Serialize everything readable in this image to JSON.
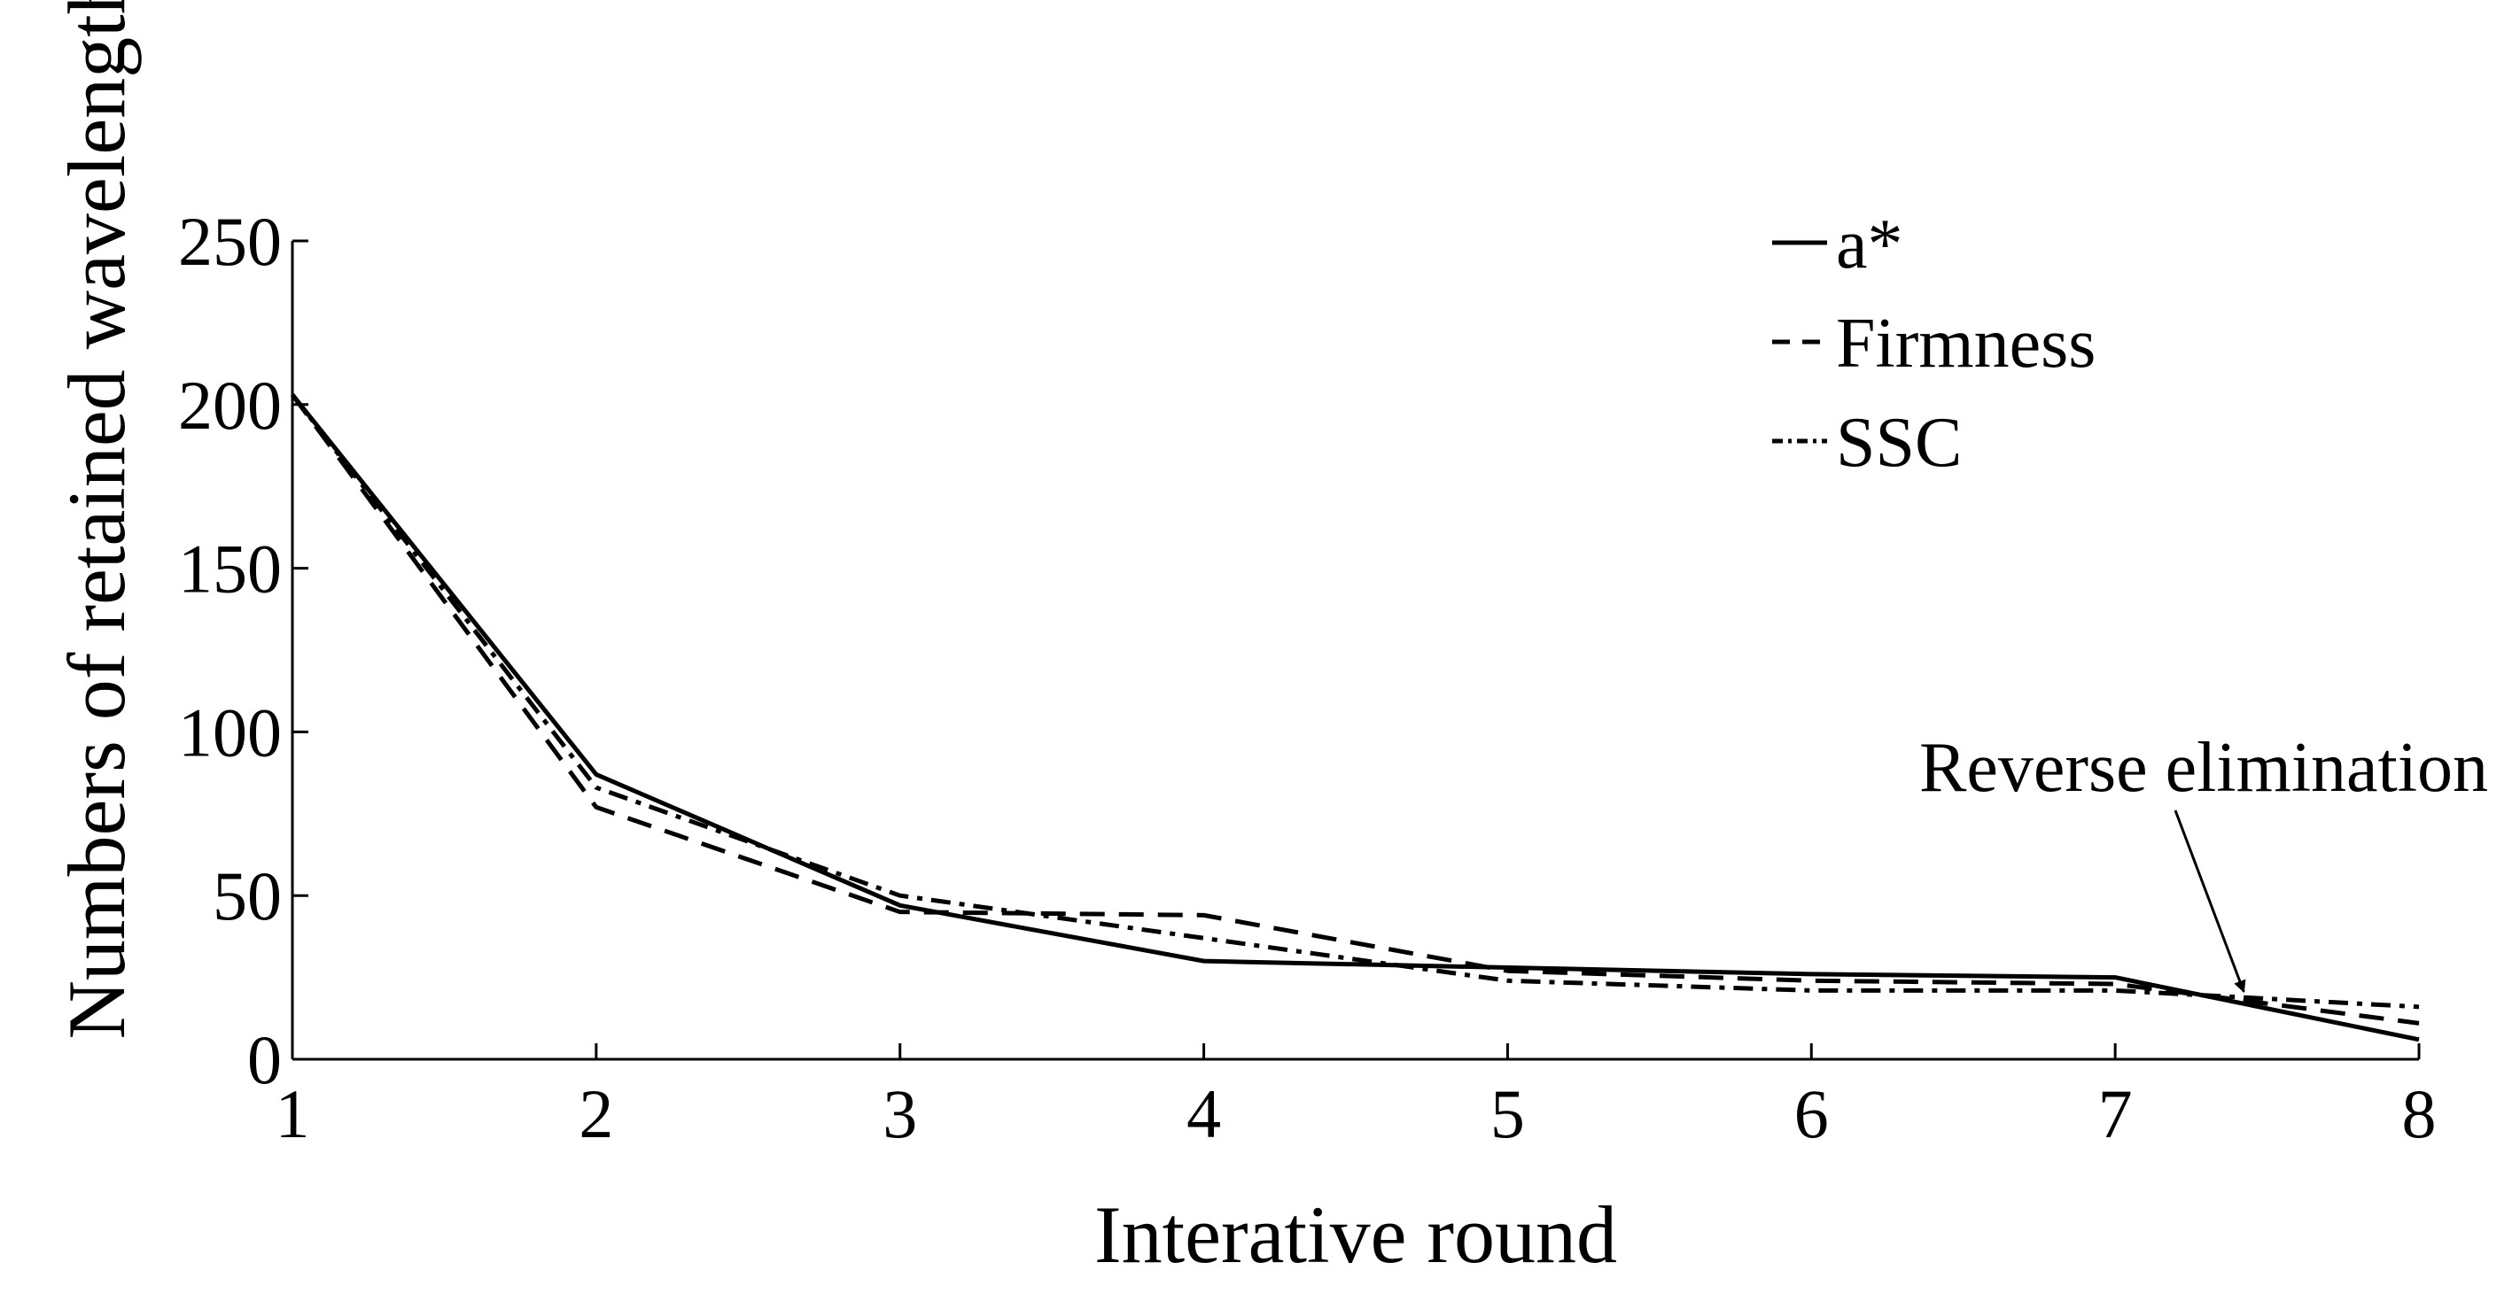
{
  "chart_data": {
    "type": "line",
    "x": [
      1,
      2,
      3,
      4,
      5,
      6,
      7,
      8
    ],
    "xlabel": "Interative round",
    "ylabel": "Numbers of retained wavelengths",
    "xlim": [
      1,
      8
    ],
    "ylim": [
      0,
      250
    ],
    "xticks": [
      "1",
      "2",
      "3",
      "4",
      "5",
      "6",
      "7",
      "8"
    ],
    "yticks": [
      "0",
      "50",
      "100",
      "150",
      "200",
      "250"
    ],
    "grid": false,
    "legend_position": "top-right",
    "series": [
      {
        "name": "a*",
        "style": "solid",
        "values": [
          203,
          87,
          47,
          30,
          28,
          26,
          25,
          6
        ]
      },
      {
        "name": "Firmness",
        "style": "dashed",
        "values": [
          203,
          77,
          45,
          44,
          27,
          24,
          23,
          11
        ]
      },
      {
        "name": "SSC",
        "style": "dashdot",
        "values": [
          203,
          83,
          50,
          37,
          24,
          21,
          21,
          16
        ]
      }
    ],
    "annotations": [
      {
        "text": "Reverse elimination",
        "points_to": {
          "x": 7.4,
          "y": 19
        }
      }
    ],
    "colors": {
      "line": "#000000",
      "background": "#ffffff"
    }
  }
}
